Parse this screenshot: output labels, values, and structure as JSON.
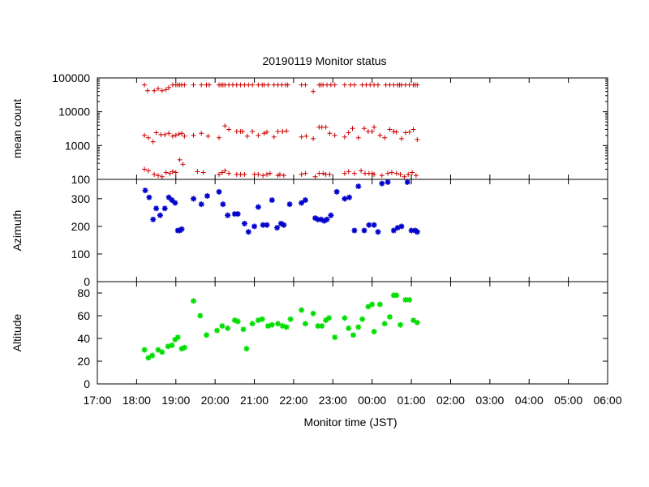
{
  "chart_data": {
    "type": "scatter",
    "title": "20190119 Monitor status",
    "xlabel": "Monitor time (JST)",
    "x_ticks": [
      "17:00",
      "18:00",
      "19:00",
      "20:00",
      "21:00",
      "22:00",
      "23:00",
      "00:00",
      "01:00",
      "02:00",
      "03:00",
      "04:00",
      "05:00",
      "06:00"
    ],
    "x_range_hours": [
      17,
      30
    ],
    "panels": [
      {
        "ylabel": "mean count",
        "yscale": "log",
        "ylim": [
          100,
          100000
        ],
        "y_ticks": [
          "100",
          "1000",
          "10000",
          "100000"
        ],
        "y_tick_values": [
          100,
          1000,
          10000,
          100000
        ],
        "color": "#cc0000",
        "marker": "plus",
        "series": [
          {
            "x": [
              18.2,
              18.28,
              18.45,
              18.55,
              18.65,
              18.75,
              18.82,
              18.92,
              19.0,
              19.05,
              19.1,
              19.15,
              19.22,
              19.45,
              19.65,
              19.78,
              19.85,
              20.1,
              20.15,
              20.2,
              20.25,
              20.35,
              20.45,
              20.55,
              20.65,
              20.75,
              20.85,
              20.95,
              21.1,
              21.2,
              21.25,
              21.35,
              21.5,
              21.6,
              21.7,
              21.8,
              21.85,
              22.2,
              22.3,
              22.5,
              22.65,
              22.7,
              22.75,
              22.85,
              22.95,
              23.05,
              23.3,
              23.45,
              23.55,
              23.75,
              23.85,
              23.95,
              24.05,
              24.15,
              24.35,
              24.45,
              24.55,
              24.65,
              24.7,
              24.75,
              24.85,
              24.95,
              25.05,
              25.1,
              25.15
            ],
            "y": [
              62000,
              42000,
              42000,
              48000,
              42000,
              45000,
              52000,
              62000,
              62000,
              62000,
              62000,
              62000,
              62000,
              62000,
              62000,
              62000,
              62000,
              62000,
              62000,
              62000,
              62000,
              62000,
              62000,
              62000,
              62000,
              62000,
              62000,
              62000,
              62000,
              62000,
              62000,
              62000,
              62000,
              62000,
              62000,
              62000,
              62000,
              62000,
              62000,
              40000,
              62000,
              62000,
              62000,
              62000,
              62000,
              62000,
              62000,
              62000,
              62000,
              62000,
              62000,
              62000,
              62000,
              62000,
              62000,
              62000,
              62000,
              62000,
              62000,
              62000,
              62000,
              62000,
              62000,
              62000,
              62000
            ]
          },
          {
            "x": [
              18.2,
              18.3,
              18.42,
              18.5,
              18.62,
              18.72,
              18.82,
              18.92,
              19.0,
              19.08,
              19.15,
              19.22,
              19.45,
              19.65,
              19.82,
              20.1,
              20.25,
              20.35,
              20.55,
              20.65,
              20.7,
              20.82,
              20.95,
              21.1,
              21.25,
              21.32,
              21.5,
              21.6,
              21.72,
              21.82,
              22.2,
              22.32,
              22.5,
              22.65,
              22.72,
              22.82,
              22.92,
              23.05,
              23.3,
              23.4,
              23.5,
              23.65,
              23.8,
              23.9,
              24.0,
              24.05,
              24.2,
              24.32,
              24.45,
              24.55,
              24.62,
              24.75,
              24.85,
              24.95,
              25.05,
              25.15
            ],
            "y": [
              2000,
              1700,
              1300,
              2400,
              2100,
              2100,
              2300,
              1900,
              2000,
              2200,
              2300,
              1900,
              2000,
              2300,
              1900,
              1700,
              3800,
              3000,
              2600,
              2600,
              2600,
              1900,
              2600,
              2000,
              2300,
              2500,
              1800,
              2600,
              2600,
              2700,
              1800,
              1900,
              1600,
              3500,
              3500,
              3500,
              2300,
              2000,
              1800,
              2400,
              3200,
              1700,
              3200,
              2600,
              2600,
              3500,
              2000,
              1700,
              3000,
              2600,
              2500,
              1600,
              2400,
              2500,
              3000,
              1500
            ]
          },
          {
            "x": [
              18.2,
              18.3,
              18.45,
              18.55,
              18.65,
              18.75,
              18.85,
              18.92,
              19.0,
              19.1,
              19.18,
              19.55,
              19.7,
              20.1,
              20.18,
              20.25,
              20.35,
              20.55,
              20.65,
              20.75,
              21.0,
              21.1,
              21.22,
              21.32,
              21.4,
              21.6,
              21.65,
              21.75,
              22.2,
              22.3,
              22.55,
              22.65,
              22.75,
              22.82,
              22.92,
              23.3,
              23.4,
              23.55,
              23.72,
              23.82,
              23.92,
              24.0,
              24.05,
              24.25,
              24.4,
              24.5,
              24.62,
              24.72,
              24.82,
              24.92,
              25.02,
              25.12
            ],
            "y": [
              200,
              180,
              140,
              130,
              120,
              160,
              150,
              170,
              160,
              380,
              280,
              170,
              160,
              140,
              160,
              180,
              150,
              140,
              140,
              140,
              140,
              140,
              130,
              140,
              150,
              130,
              140,
              130,
              140,
              150,
              120,
              150,
              150,
              140,
              140,
              150,
              170,
              150,
              180,
              150,
              150,
              150,
              140,
              130,
              150,
              160,
              150,
              140,
              120,
              140,
              160,
              130
            ]
          }
        ]
      },
      {
        "ylabel": "Azimuth",
        "yscale": "linear",
        "ylim": [
          0,
          370
        ],
        "y_ticks": [
          "0",
          "100",
          "200",
          "300"
        ],
        "y_tick_values": [
          0,
          100,
          200,
          300
        ],
        "color": "#0000cc",
        "marker": "filled-star",
        "series": [
          {
            "x": [
              18.22,
              18.32,
              18.42,
              18.5,
              18.6,
              18.72,
              18.82,
              18.9,
              18.98,
              19.05,
              19.1,
              19.15,
              19.45,
              19.65,
              19.8,
              20.1,
              20.2,
              20.32,
              20.5,
              20.58,
              20.75,
              20.85,
              21.0,
              21.1,
              21.22,
              21.32,
              21.45,
              21.58,
              21.68,
              21.75,
              21.9,
              22.2,
              22.3,
              22.55,
              22.62,
              22.7,
              22.78,
              22.85,
              22.95,
              23.1,
              23.3,
              23.42,
              23.55,
              23.65,
              23.8,
              23.92,
              24.05,
              24.15,
              24.25,
              24.4,
              24.55,
              24.65,
              24.75,
              24.9,
              25.0,
              25.1,
              25.15
            ],
            "y": [
              330,
              305,
              225,
              265,
              240,
              265,
              305,
              295,
              285,
              185,
              185,
              190,
              300,
              280,
              310,
              325,
              280,
              240,
              245,
              245,
              210,
              180,
              200,
              270,
              205,
              205,
              295,
              195,
              210,
              205,
              280,
              285,
              295,
              230,
              225,
              225,
              220,
              225,
              240,
              325,
              300,
              305,
              185,
              345,
              185,
              205,
              205,
              180,
              355,
              360,
              185,
              195,
              200,
              360,
              185,
              185,
              180
            ]
          }
        ]
      },
      {
        "ylabel": "Altitude",
        "yscale": "linear",
        "ylim": [
          0,
          90
        ],
        "y_ticks": [
          "0",
          "20",
          "40",
          "60",
          "80"
        ],
        "y_tick_values": [
          0,
          20,
          40,
          60,
          80
        ],
        "color": "#00dd00",
        "marker": "filled-star",
        "series": [
          {
            "x": [
              18.2,
              18.3,
              18.4,
              18.55,
              18.65,
              18.8,
              18.9,
              18.98,
              19.05,
              19.15,
              19.22,
              19.45,
              19.62,
              19.78,
              20.05,
              20.18,
              20.32,
              20.5,
              20.58,
              20.72,
              20.8,
              20.95,
              21.1,
              21.2,
              21.35,
              21.45,
              21.6,
              21.72,
              21.82,
              21.92,
              22.2,
              22.3,
              22.5,
              22.62,
              22.72,
              22.82,
              22.9,
              23.05,
              23.3,
              23.4,
              23.52,
              23.65,
              23.75,
              23.9,
              24.0,
              24.05,
              24.2,
              24.32,
              24.45,
              24.55,
              24.62,
              24.72,
              24.85,
              24.95,
              25.05,
              25.15
            ],
            "y": [
              30,
              23,
              25,
              30,
              28,
              33,
              34,
              39,
              41,
              31,
              32,
              73,
              60,
              43,
              47,
              51,
              49,
              56,
              55,
              48,
              31,
              53,
              56,
              57,
              51,
              52,
              53,
              51,
              50,
              57,
              65,
              53,
              62,
              51,
              51,
              56,
              58,
              41,
              58,
              49,
              43,
              50,
              57,
              68,
              70,
              46,
              70,
              53,
              59,
              78,
              78,
              52,
              74,
              74,
              56,
              54
            ]
          }
        ]
      }
    ]
  }
}
